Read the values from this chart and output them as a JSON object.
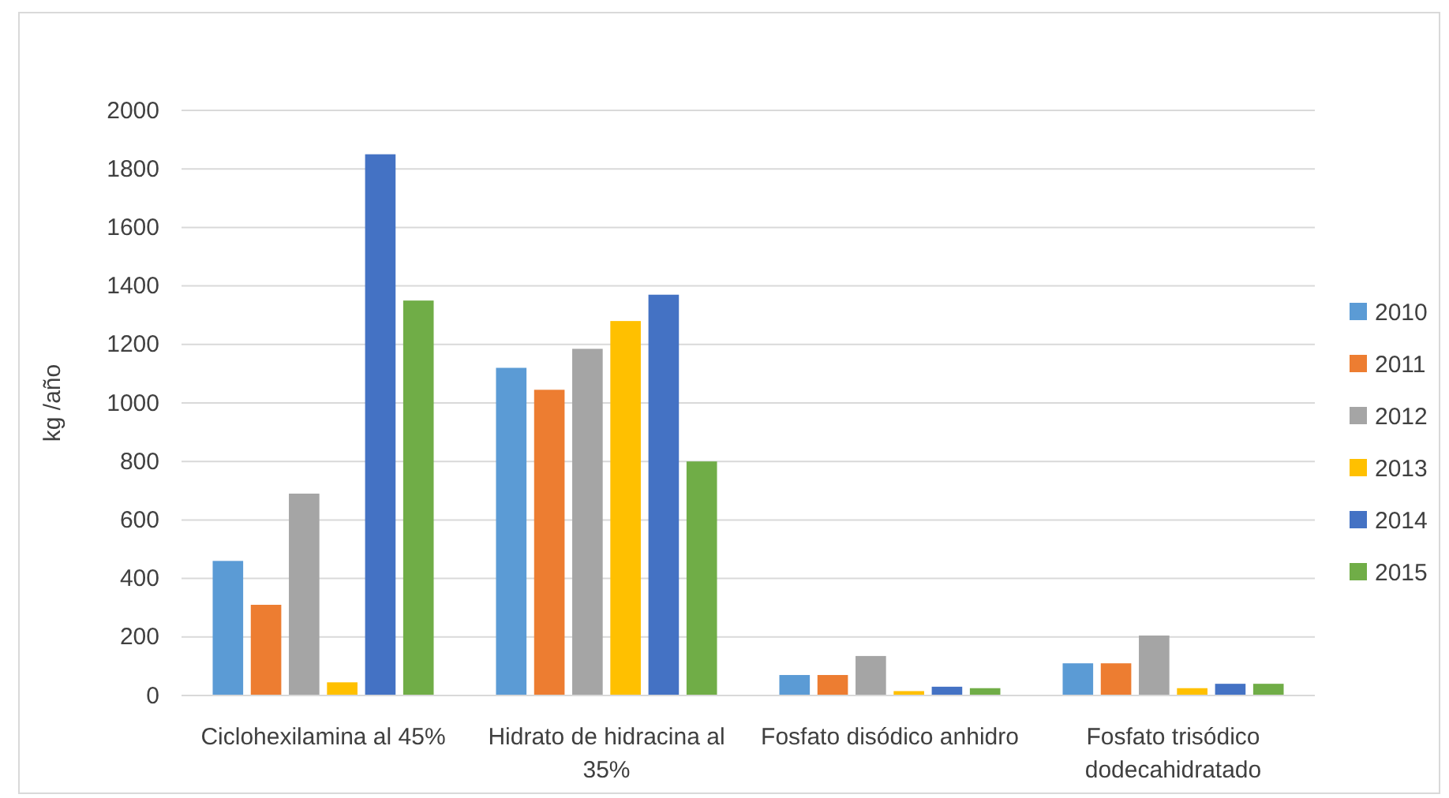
{
  "chart_data": {
    "type": "bar",
    "ylabel": "kg /año",
    "categories": [
      "Ciclohexilamina al 45%",
      "Hidrato de hidracina al 35%",
      "Fosfato disódico anhidro",
      "Fosfato trisódico dodecahidratado"
    ],
    "series": [
      {
        "name": "2010",
        "color": "#5b9bd5",
        "values": [
          460,
          1120,
          70,
          110
        ]
      },
      {
        "name": "2011",
        "color": "#ed7d31",
        "values": [
          310,
          1045,
          70,
          110
        ]
      },
      {
        "name": "2012",
        "color": "#a5a5a5",
        "values": [
          690,
          1185,
          135,
          205
        ]
      },
      {
        "name": "2013",
        "color": "#ffc000",
        "values": [
          45,
          1280,
          15,
          25
        ]
      },
      {
        "name": "2014",
        "color": "#4472c4",
        "values": [
          1850,
          1370,
          30,
          40
        ]
      },
      {
        "name": "2015",
        "color": "#70ad47",
        "values": [
          1350,
          800,
          25,
          40
        ]
      }
    ],
    "ylim": [
      0,
      2000
    ],
    "yticks": [
      0,
      200,
      400,
      600,
      800,
      1000,
      1200,
      1400,
      1600,
      1800,
      2000
    ],
    "grid": "y",
    "legend": "right"
  }
}
